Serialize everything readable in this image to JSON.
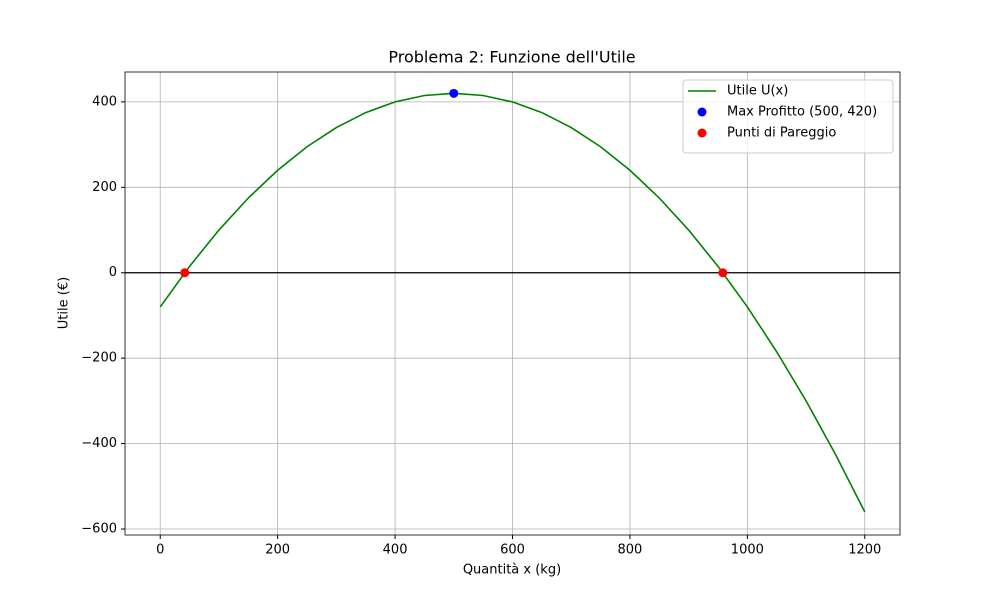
{
  "chart_data": {
    "type": "line",
    "title": "Problema 2: Funzione dell'Utile",
    "x_label": "Quantità x (kg)",
    "y_label": "Utile (€)",
    "xlim": [
      -60,
      1260
    ],
    "ylim": [
      -614,
      470
    ],
    "xticks": [
      0,
      200,
      400,
      600,
      800,
      1000,
      1200
    ],
    "yticks": [
      {
        "value": -600,
        "label": "−600"
      },
      {
        "value": -400,
        "label": "−400"
      },
      {
        "value": -200,
        "label": "−200"
      },
      0,
      200,
      400
    ],
    "grid": true,
    "legend": "upper right",
    "hline": {
      "value": 0,
      "color": "black"
    },
    "series": [
      {
        "name": "Utile U(x)",
        "type": "line",
        "color": "green",
        "x": [
          0,
          50,
          100,
          150,
          200,
          250,
          300,
          350,
          400,
          450,
          500,
          550,
          600,
          650,
          700,
          750,
          800,
          850,
          900,
          950,
          1000,
          1050,
          1100,
          1150,
          1200
        ],
        "values": [
          -80,
          15,
          100,
          175,
          240,
          295,
          340,
          375,
          400,
          415,
          420,
          415,
          400,
          375,
          340,
          295,
          240,
          175,
          100,
          15,
          -80,
          -185,
          -300,
          -425,
          -560
        ]
      },
      {
        "name": "Max Profitto (500, 420)",
        "type": "scatter",
        "color": "blue",
        "x": [
          500
        ],
        "values": [
          420
        ]
      },
      {
        "name": "Punti di Pareggio",
        "type": "scatter",
        "color": "red",
        "x": [
          41.74,
          958.26
        ],
        "values": [
          0,
          0
        ]
      }
    ]
  }
}
